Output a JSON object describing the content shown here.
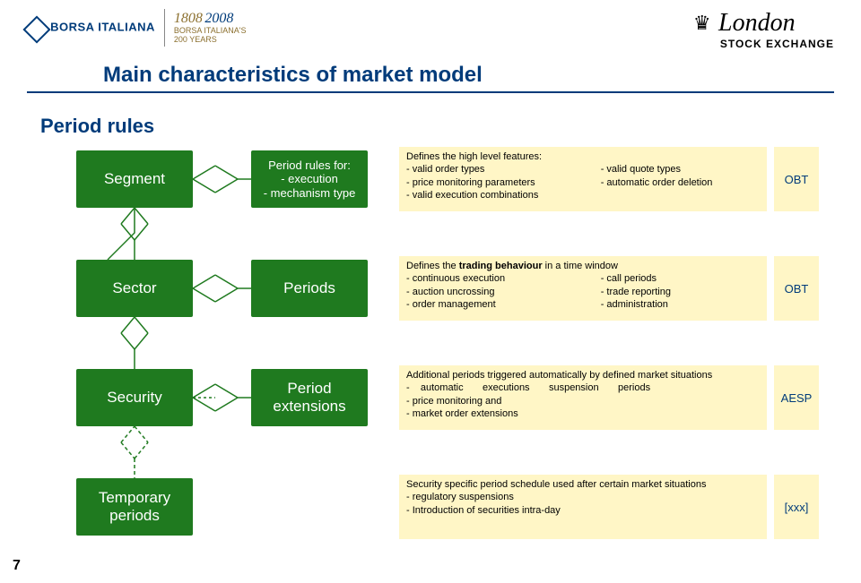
{
  "header": {
    "logo_left": "BORSA ITALIANA",
    "logo_mid_year": "1808",
    "logo_mid_year2": "2008",
    "logo_mid_sub1": "BORSA ITALIANA'S",
    "logo_mid_sub2": "200 YEARS",
    "logo_right_top": "London",
    "logo_right_bottom": "STOCK EXCHANGE"
  },
  "title": "Main characteristics of market model",
  "subtitle": "Period rules",
  "page_number": "7",
  "colors": {
    "green": "#1f7a1f",
    "yellow": "#fff6c6",
    "blue": "#003b7a",
    "line": "#1f7a1f"
  },
  "rows": [
    {
      "box_a": "Segment",
      "box_b_multiline": true,
      "box_b_l1": "Period rules for:",
      "box_b_l2": "- execution",
      "box_b_l3": "- mechanism type",
      "desc_head": "Defines the high level features:",
      "desc_c1_1": "- valid order types",
      "desc_c1_2": "- price monitoring parameters",
      "desc_c1_3": "- valid execution combinations",
      "desc_c2_1": "- valid quote types",
      "desc_c2_2": "- automatic order deletion",
      "desc_c2_3": "",
      "tag": "OBT"
    },
    {
      "box_a": "Sector",
      "box_b": "Periods",
      "desc_head_html": "Defines the <b>trading behaviour</b> in a time window",
      "desc_c1_1": "- continuous execution",
      "desc_c1_2": "- auction uncrossing",
      "desc_c1_3": "- order management",
      "desc_c2_1": "- call periods",
      "desc_c2_2": "- trade reporting",
      "desc_c2_3": "- administration",
      "tag": "OBT"
    },
    {
      "box_a": "Security",
      "box_b": "Period extensions",
      "desc_l1": "Additional periods triggered automatically by defined market situations",
      "desc_l2": "-    automatic       executions       suspension       periods",
      "desc_l3": "- price monitoring and",
      "desc_l4": "- market order extensions",
      "tag": "AESP"
    },
    {
      "box_a": "Temporary periods",
      "desc_l1": "Security specific period schedule used after certain market situations",
      "desc_l2": "- regulatory suspensions",
      "desc_l3": "- Introduction of securities intra-day",
      "tag": "[xxx]"
    }
  ]
}
